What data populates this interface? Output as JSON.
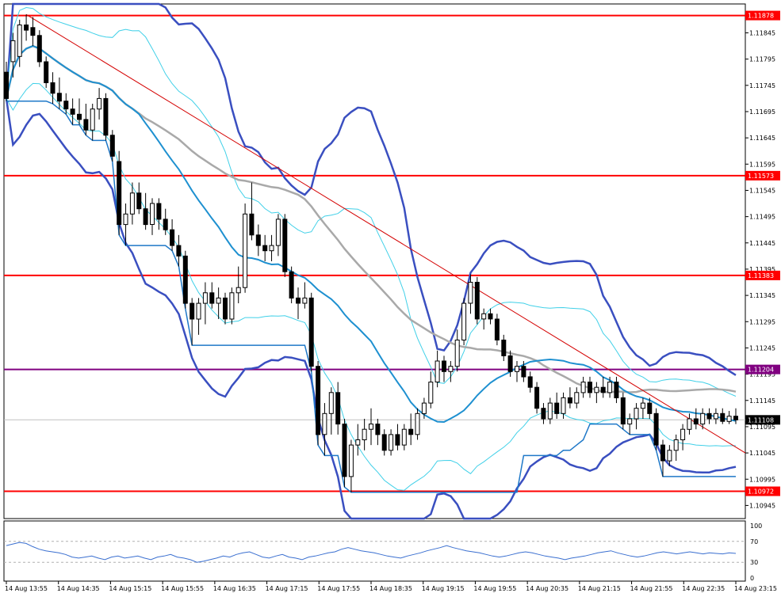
{
  "chart_data": {
    "type": "candlestick",
    "instrument_note": "",
    "colors": {
      "bull_body": "#ffffff",
      "bear_body": "#000000",
      "outline": "#000000",
      "hline_red": "#ff0000",
      "hline_purple": "#800080",
      "bb_outer": "#3a4fc0",
      "bb_inner": "#40d0e8",
      "ma_mid": "#1e90d0",
      "ma_slow": "#a9a9a9",
      "trend": "#d40000",
      "step": "#1e78c8",
      "osc": "#3a6fd0"
    },
    "price_axis": {
      "min": 1.1092,
      "max": 1.119,
      "ticks": [
        "1.11845",
        "1.11795",
        "1.11745",
        "1.11695",
        "1.11645",
        "1.11595",
        "1.11545",
        "1.11495",
        "1.11445",
        "1.11395",
        "1.11345",
        "1.11295",
        "1.11245",
        "1.11195",
        "1.11145",
        "1.11095",
        "1.11045",
        "1.10995",
        "1.10945"
      ]
    },
    "time_axis": {
      "ticks": [
        "14 Aug 13:55",
        "14 Aug 14:35",
        "14 Aug 15:15",
        "14 Aug 15:55",
        "14 Aug 16:35",
        "14 Aug 17:15",
        "14 Aug 17:55",
        "14 Aug 18:35",
        "14 Aug 19:15",
        "14 Aug 19:55",
        "14 Aug 20:35",
        "14 Aug 21:15",
        "14 Aug 21:55",
        "14 Aug 22:35",
        "14 Aug 23:15"
      ]
    },
    "horizontal_levels": [
      {
        "price": 1.11878,
        "label": "1.11878",
        "color": "red"
      },
      {
        "price": 1.11573,
        "label": "1.11573",
        "color": "red"
      },
      {
        "price": 1.11383,
        "label": "1.11383",
        "color": "red"
      },
      {
        "price": 1.11204,
        "label": "1.11204",
        "color": "purple"
      },
      {
        "price": 1.11108,
        "label": "1.11108",
        "color": "black"
      },
      {
        "price": 1.10972,
        "label": "1.10972",
        "color": "red"
      }
    ],
    "oscillator": {
      "levels": [
        "100",
        "70",
        "30",
        "0"
      ],
      "values": [
        62,
        65,
        68,
        66,
        60,
        55,
        52,
        50,
        48,
        45,
        40,
        38,
        40,
        42,
        38,
        35,
        40,
        42,
        38,
        40,
        42,
        38,
        35,
        40,
        42,
        45,
        40,
        38,
        35,
        30,
        32,
        35,
        38,
        42,
        40,
        45,
        48,
        50,
        45,
        40,
        38,
        42,
        45,
        40,
        38,
        35,
        40,
        42,
        45,
        48,
        50,
        55,
        58,
        55,
        52,
        50,
        48,
        45,
        42,
        40,
        38,
        42,
        45,
        48,
        52,
        55,
        58,
        62,
        58,
        55,
        52,
        50,
        48,
        45,
        42,
        40,
        42,
        45,
        48,
        50,
        48,
        45,
        42,
        40,
        38,
        35,
        38,
        40,
        42,
        45,
        48,
        50,
        52,
        48,
        45,
        42,
        40,
        42,
        45,
        48,
        50,
        48,
        46,
        48,
        50,
        48,
        46,
        48,
        47,
        46,
        48,
        47
      ]
    },
    "candles": [
      {
        "o": 1.1177,
        "h": 1.1179,
        "l": 1.11715,
        "c": 1.1172
      },
      {
        "o": 1.1179,
        "h": 1.11845,
        "l": 1.1176,
        "c": 1.1183
      },
      {
        "o": 1.118,
        "h": 1.1187,
        "l": 1.1178,
        "c": 1.1186
      },
      {
        "o": 1.1186,
        "h": 1.1188,
        "l": 1.1183,
        "c": 1.1185
      },
      {
        "o": 1.11855,
        "h": 1.11875,
        "l": 1.1182,
        "c": 1.1184
      },
      {
        "o": 1.1184,
        "h": 1.1185,
        "l": 1.1178,
        "c": 1.1179
      },
      {
        "o": 1.1179,
        "h": 1.118,
        "l": 1.1174,
        "c": 1.1175
      },
      {
        "o": 1.1175,
        "h": 1.1177,
        "l": 1.1171,
        "c": 1.1173
      },
      {
        "o": 1.1173,
        "h": 1.1176,
        "l": 1.117,
        "c": 1.11715
      },
      {
        "o": 1.11715,
        "h": 1.1173,
        "l": 1.1169,
        "c": 1.117
      },
      {
        "o": 1.117,
        "h": 1.1172,
        "l": 1.1167,
        "c": 1.1169
      },
      {
        "o": 1.1169,
        "h": 1.1172,
        "l": 1.1167,
        "c": 1.1168
      },
      {
        "o": 1.1168,
        "h": 1.1171,
        "l": 1.1165,
        "c": 1.1166
      },
      {
        "o": 1.1166,
        "h": 1.1171,
        "l": 1.1164,
        "c": 1.117
      },
      {
        "o": 1.117,
        "h": 1.1174,
        "l": 1.1168,
        "c": 1.1172
      },
      {
        "o": 1.1172,
        "h": 1.1173,
        "l": 1.1164,
        "c": 1.1165
      },
      {
        "o": 1.1165,
        "h": 1.1166,
        "l": 1.116,
        "c": 1.1161
      },
      {
        "o": 1.116,
        "h": 1.1162,
        "l": 1.1146,
        "c": 1.1148
      },
      {
        "o": 1.1148,
        "h": 1.1152,
        "l": 1.1144,
        "c": 1.115
      },
      {
        "o": 1.115,
        "h": 1.1156,
        "l": 1.1148,
        "c": 1.1154
      },
      {
        "o": 1.1154,
        "h": 1.1156,
        "l": 1.115,
        "c": 1.1151
      },
      {
        "o": 1.1151,
        "h": 1.1154,
        "l": 1.1147,
        "c": 1.1148
      },
      {
        "o": 1.1148,
        "h": 1.1153,
        "l": 1.1146,
        "c": 1.1152
      },
      {
        "o": 1.1152,
        "h": 1.1153,
        "l": 1.1147,
        "c": 1.1149
      },
      {
        "o": 1.1149,
        "h": 1.1151,
        "l": 1.1146,
        "c": 1.1147
      },
      {
        "o": 1.1147,
        "h": 1.1149,
        "l": 1.1143,
        "c": 1.1144
      },
      {
        "o": 1.1144,
        "h": 1.1146,
        "l": 1.114,
        "c": 1.1142
      },
      {
        "o": 1.1142,
        "h": 1.1143,
        "l": 1.1132,
        "c": 1.1133
      },
      {
        "o": 1.1133,
        "h": 1.1134,
        "l": 1.1125,
        "c": 1.113
      },
      {
        "o": 1.113,
        "h": 1.1134,
        "l": 1.1127,
        "c": 1.1133
      },
      {
        "o": 1.1133,
        "h": 1.1137,
        "l": 1.1129,
        "c": 1.1135
      },
      {
        "o": 1.1135,
        "h": 1.1137,
        "l": 1.1132,
        "c": 1.1133
      },
      {
        "o": 1.1133,
        "h": 1.1136,
        "l": 1.113,
        "c": 1.1134
      },
      {
        "o": 1.1134,
        "h": 1.1135,
        "l": 1.1129,
        "c": 1.113
      },
      {
        "o": 1.113,
        "h": 1.1136,
        "l": 1.1129,
        "c": 1.1135
      },
      {
        "o": 1.1135,
        "h": 1.114,
        "l": 1.1133,
        "c": 1.1136
      },
      {
        "o": 1.1136,
        "h": 1.1152,
        "l": 1.1135,
        "c": 1.115
      },
      {
        "o": 1.115,
        "h": 1.1156,
        "l": 1.1145,
        "c": 1.1146
      },
      {
        "o": 1.1146,
        "h": 1.1148,
        "l": 1.1142,
        "c": 1.1144
      },
      {
        "o": 1.1144,
        "h": 1.1146,
        "l": 1.1141,
        "c": 1.1143
      },
      {
        "o": 1.1143,
        "h": 1.1146,
        "l": 1.1141,
        "c": 1.1144
      },
      {
        "o": 1.1144,
        "h": 1.115,
        "l": 1.1142,
        "c": 1.1149
      },
      {
        "o": 1.1149,
        "h": 1.115,
        "l": 1.1138,
        "c": 1.1139
      },
      {
        "o": 1.1139,
        "h": 1.114,
        "l": 1.1133,
        "c": 1.1134
      },
      {
        "o": 1.1134,
        "h": 1.1136,
        "l": 1.113,
        "c": 1.1133
      },
      {
        "o": 1.1133,
        "h": 1.1137,
        "l": 1.1132,
        "c": 1.1134
      },
      {
        "o": 1.1134,
        "h": 1.1135,
        "l": 1.112,
        "c": 1.1121
      },
      {
        "o": 1.1121,
        "h": 1.1122,
        "l": 1.1106,
        "c": 1.1108
      },
      {
        "o": 1.1108,
        "h": 1.1114,
        "l": 1.1104,
        "c": 1.1112
      },
      {
        "o": 1.1112,
        "h": 1.1117,
        "l": 1.1108,
        "c": 1.1116
      },
      {
        "o": 1.1116,
        "h": 1.1118,
        "l": 1.1108,
        "c": 1.111
      },
      {
        "o": 1.111,
        "h": 1.1111,
        "l": 1.1098,
        "c": 1.11
      },
      {
        "o": 1.11,
        "h": 1.1107,
        "l": 1.1097,
        "c": 1.1106
      },
      {
        "o": 1.1106,
        "h": 1.111,
        "l": 1.1104,
        "c": 1.1107
      },
      {
        "o": 1.1107,
        "h": 1.1111,
        "l": 1.1105,
        "c": 1.1109
      },
      {
        "o": 1.1109,
        "h": 1.1113,
        "l": 1.1106,
        "c": 1.111
      },
      {
        "o": 1.111,
        "h": 1.1111,
        "l": 1.1106,
        "c": 1.1108
      },
      {
        "o": 1.1108,
        "h": 1.1109,
        "l": 1.1104,
        "c": 1.1105
      },
      {
        "o": 1.1105,
        "h": 1.1109,
        "l": 1.1104,
        "c": 1.1108
      },
      {
        "o": 1.1108,
        "h": 1.111,
        "l": 1.1105,
        "c": 1.1106
      },
      {
        "o": 1.1106,
        "h": 1.111,
        "l": 1.1105,
        "c": 1.1109
      },
      {
        "o": 1.1109,
        "h": 1.1112,
        "l": 1.1106,
        "c": 1.1108
      },
      {
        "o": 1.1108,
        "h": 1.1113,
        "l": 1.1107,
        "c": 1.1112
      },
      {
        "o": 1.1112,
        "h": 1.1115,
        "l": 1.1111,
        "c": 1.1114
      },
      {
        "o": 1.1114,
        "h": 1.112,
        "l": 1.1113,
        "c": 1.1118
      },
      {
        "o": 1.1118,
        "h": 1.1124,
        "l": 1.1117,
        "c": 1.1122
      },
      {
        "o": 1.1122,
        "h": 1.1123,
        "l": 1.1118,
        "c": 1.112
      },
      {
        "o": 1.112,
        "h": 1.1122,
        "l": 1.1118,
        "c": 1.1121
      },
      {
        "o": 1.1121,
        "h": 1.1128,
        "l": 1.112,
        "c": 1.1126
      },
      {
        "o": 1.1126,
        "h": 1.1134,
        "l": 1.1125,
        "c": 1.1133
      },
      {
        "o": 1.1133,
        "h": 1.11385,
        "l": 1.1131,
        "c": 1.1137
      },
      {
        "o": 1.1137,
        "h": 1.1138,
        "l": 1.1129,
        "c": 1.113
      },
      {
        "o": 1.113,
        "h": 1.1132,
        "l": 1.1128,
        "c": 1.1131
      },
      {
        "o": 1.1131,
        "h": 1.1132,
        "l": 1.1129,
        "c": 1.113
      },
      {
        "o": 1.113,
        "h": 1.1131,
        "l": 1.1125,
        "c": 1.1126
      },
      {
        "o": 1.1126,
        "h": 1.1127,
        "l": 1.1122,
        "c": 1.1123
      },
      {
        "o": 1.1123,
        "h": 1.1124,
        "l": 1.1119,
        "c": 1.112
      },
      {
        "o": 1.112,
        "h": 1.1122,
        "l": 1.1118,
        "c": 1.1121
      },
      {
        "o": 1.1121,
        "h": 1.1122,
        "l": 1.1118,
        "c": 1.1119
      },
      {
        "o": 1.1119,
        "h": 1.112,
        "l": 1.1116,
        "c": 1.1117
      },
      {
        "o": 1.1117,
        "h": 1.1118,
        "l": 1.1112,
        "c": 1.1113
      },
      {
        "o": 1.1113,
        "h": 1.1114,
        "l": 1.111,
        "c": 1.1111
      },
      {
        "o": 1.1111,
        "h": 1.1115,
        "l": 1.111,
        "c": 1.1114
      },
      {
        "o": 1.1114,
        "h": 1.1116,
        "l": 1.1111,
        "c": 1.1112
      },
      {
        "o": 1.1112,
        "h": 1.1116,
        "l": 1.1111,
        "c": 1.1115
      },
      {
        "o": 1.1115,
        "h": 1.1117,
        "l": 1.1113,
        "c": 1.1114
      },
      {
        "o": 1.1114,
        "h": 1.1117,
        "l": 1.1113,
        "c": 1.1116
      },
      {
        "o": 1.1116,
        "h": 1.1119,
        "l": 1.1115,
        "c": 1.1118
      },
      {
        "o": 1.1118,
        "h": 1.1119,
        "l": 1.1115,
        "c": 1.1116
      },
      {
        "o": 1.1116,
        "h": 1.1118,
        "l": 1.1114,
        "c": 1.1117
      },
      {
        "o": 1.1117,
        "h": 1.1119,
        "l": 1.1115,
        "c": 1.1116
      },
      {
        "o": 1.1116,
        "h": 1.1119,
        "l": 1.1115,
        "c": 1.1118
      },
      {
        "o": 1.1118,
        "h": 1.1119,
        "l": 1.1114,
        "c": 1.1115
      },
      {
        "o": 1.1115,
        "h": 1.1116,
        "l": 1.1109,
        "c": 1.111
      },
      {
        "o": 1.111,
        "h": 1.1112,
        "l": 1.1108,
        "c": 1.1111
      },
      {
        "o": 1.1111,
        "h": 1.1114,
        "l": 1.1109,
        "c": 1.1113
      },
      {
        "o": 1.1113,
        "h": 1.1115,
        "l": 1.1111,
        "c": 1.1114
      },
      {
        "o": 1.1114,
        "h": 1.1115,
        "l": 1.1111,
        "c": 1.1112
      },
      {
        "o": 1.1112,
        "h": 1.1113,
        "l": 1.1105,
        "c": 1.1106
      },
      {
        "o": 1.1106,
        "h": 1.1107,
        "l": 1.11,
        "c": 1.1103
      },
      {
        "o": 1.1103,
        "h": 1.1106,
        "l": 1.1102,
        "c": 1.1105
      },
      {
        "o": 1.1105,
        "h": 1.1108,
        "l": 1.1103,
        "c": 1.1107
      },
      {
        "o": 1.1107,
        "h": 1.111,
        "l": 1.1105,
        "c": 1.1109
      },
      {
        "o": 1.1109,
        "h": 1.1112,
        "l": 1.1108,
        "c": 1.1111
      },
      {
        "o": 1.1111,
        "h": 1.1113,
        "l": 1.1109,
        "c": 1.111
      },
      {
        "o": 1.111,
        "h": 1.1113,
        "l": 1.1109,
        "c": 1.1112
      },
      {
        "o": 1.1112,
        "h": 1.1113,
        "l": 1.111,
        "c": 1.1111
      },
      {
        "o": 1.1111,
        "h": 1.1113,
        "l": 1.111,
        "c": 1.1112
      },
      {
        "o": 1.1112,
        "h": 1.1113,
        "l": 1.111,
        "c": 1.11105
      },
      {
        "o": 1.11105,
        "h": 1.11125,
        "l": 1.111,
        "c": 1.11115
      },
      {
        "o": 1.11115,
        "h": 1.1113,
        "l": 1.111,
        "c": 1.11108
      }
    ]
  }
}
